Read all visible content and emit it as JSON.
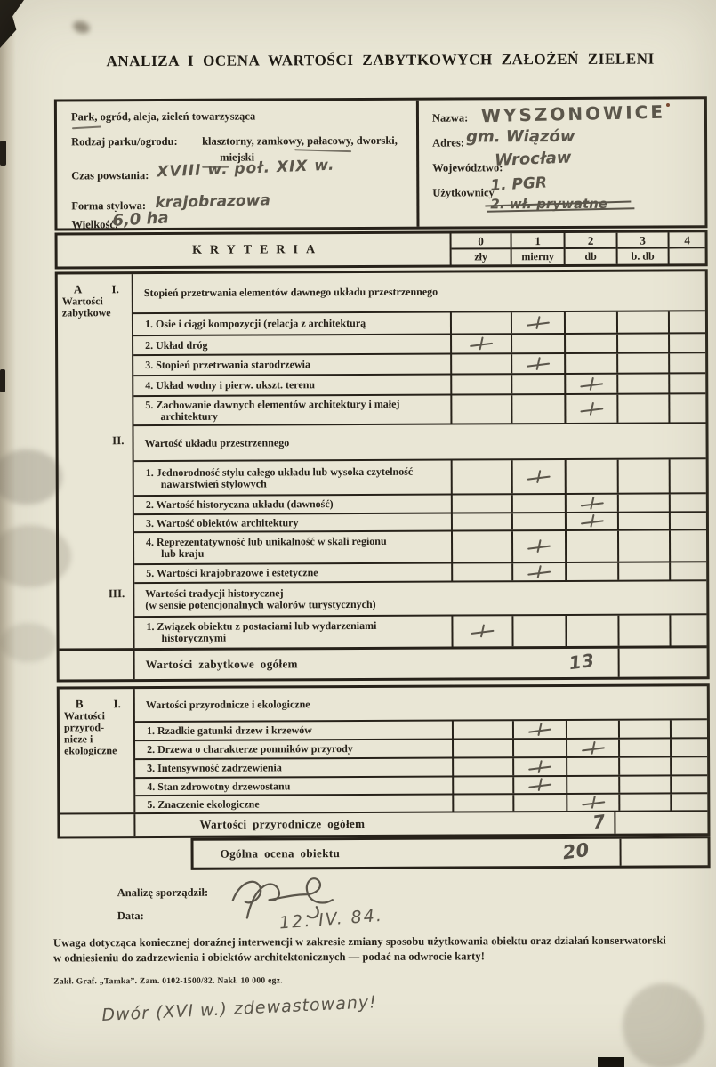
{
  "title": "ANALIZA I OCENA WARTOŚCI ZABYTKOWYCH ZAŁOŻEŃ ZIELENI",
  "colors": {
    "paper": "#e9e6d5",
    "ink": "#27221a",
    "pencil": "#5b564b"
  },
  "info": {
    "left": {
      "park_line": "Park, ogród, aleja, zieleń towarzysząca",
      "rodzaj_label": "Rodzaj parku/ogrodu:",
      "rodzaj_line1": "klasztorny, zamkowy, pałacowy, dworski,",
      "rodzaj_line2": "miejski",
      "czas_label": "Czas powstania:",
      "czas_value": "XVIII w. poł. XIX w.",
      "forma_label": "Forma stylowa:",
      "forma_value": "krajobrazowa",
      "wielkosc_label": "Wielkość:",
      "wielkosc_value": "6,0 ha"
    },
    "right": {
      "nazwa_label": "Nazwa:",
      "nazwa_value": "WYSZONOWICE",
      "adres_label": "Adres:",
      "adres_value": "gm. Wiązów",
      "woj_label": "Województwo:",
      "woj_value": "Wrocław",
      "uzytkownicy_label": "Użytkownicy",
      "uzytkownicy_value1": "1. PGR",
      "uzytkownicy_value2": "2. wł. prywatne"
    }
  },
  "table": {
    "kryteria": "KRYTERIA",
    "columns": [
      {
        "num": "0",
        "label": "zły"
      },
      {
        "num": "1",
        "label": "mierny"
      },
      {
        "num": "2",
        "label": "db"
      },
      {
        "num": "3",
        "label": "b. db"
      },
      {
        "num": "4",
        "label": ""
      }
    ],
    "sections": [
      {
        "code": "A",
        "roman": "I.",
        "side": "Wartości\nzabytkowe",
        "header": "Stopień przetrwania elementów dawnego układu przestrzennego",
        "rows": [
          {
            "text": "1. Osie i ciągi kompozycji (relacja z architekturą",
            "score": 1
          },
          {
            "text": "2. Układ dróg",
            "score": 0
          },
          {
            "text": "3. Stopień przetrwania starodrzewia",
            "score": 1
          },
          {
            "text": "4. Układ wodny i pierw. ukszt. terenu",
            "score": 2
          },
          {
            "text": "5. Zachowanie dawnych elementów architektury i małej\narchitektury",
            "score": 2
          }
        ]
      },
      {
        "code": "",
        "roman": "II.",
        "side": "",
        "header": "Wartość układu przestrzennego",
        "rows": [
          {
            "text": "1. Jednorodność stylu całego układu lub wysoka czytelność\nnawarstwień stylowych",
            "score": 1
          },
          {
            "text": "2. Wartość historyczna układu (dawność)",
            "score": 2
          },
          {
            "text": "3. Wartość obiektów architektury",
            "score": 2
          },
          {
            "text": "4. Reprezentatywność lub unikalność w skali regionu\nlub kraju",
            "score": 1
          },
          {
            "text": "5. Wartości krajobrazowe i estetyczne",
            "score": 1
          }
        ]
      },
      {
        "code": "",
        "roman": "III.",
        "side": "",
        "header": "Wartości tradycji historycznej\n(w sensie potencjonalnych walorów turystycznych)",
        "rows": [
          {
            "text": "1. Związek obiektu z postaciami lub wydarzeniami\nhistorycznymi",
            "score": 0
          }
        ]
      },
      {
        "code": "B",
        "roman": "I.",
        "side": "Wartości\nprzyrod-\nnicze i\nekologiczne",
        "header": "Wartości przyrodnicze i ekologiczne",
        "rows": [
          {
            "text": "1. Rzadkie gatunki drzew i krzewów",
            "score": 1
          },
          {
            "text": "2. Drzewa o charakterze pomników przyrody",
            "score": 2
          },
          {
            "text": "3. Intensywność zadrzewienia",
            "score": 1
          },
          {
            "text": "4. Stan zdrowotny drzewostanu",
            "score": 1
          },
          {
            "text": "5. Znaczenie ekologiczne",
            "score": 2
          }
        ]
      }
    ],
    "totals": {
      "zabytkowe_label": "Wartości zabytkowe ogółem",
      "zabytkowe_value": "13",
      "przyrodnicze_label": "Wartości przyrodnicze ogółem",
      "przyrodnicze_value": "7",
      "ogolna_label": "Ogólna ocena obiektu",
      "ogolna_value": "20"
    }
  },
  "footer": {
    "sporzadzil_label": "Analizę sporządził:",
    "data_label": "Data:",
    "data_value": "12. IV. 84.",
    "uwaga_line1": "Uwaga dotycząca koniecznej doraźnej interwencji w zakresie zmiany sposobu użytkowania obiektu oraz działań konserwatorski",
    "uwaga_line2": "w odniesieniu do zadrzewienia i obiektów architektonicznych — podać na odwrocie karty!",
    "print_credit": "Zakł. Graf. „Tamka”. Zam. 0102-1500/82. Nakł. 10 000 egz.",
    "hand_note": "Dwór (XVI w.) zdewastowany!"
  }
}
